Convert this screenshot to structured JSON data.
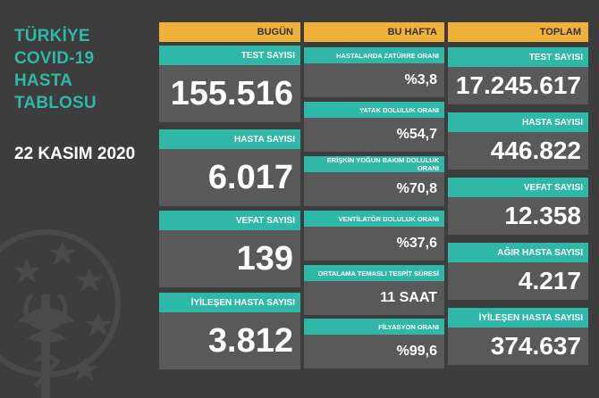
{
  "title": "TÜRKİYE\nCOVID-19\nHASTA\nTABLOSU",
  "date": "22 KASIM 2020",
  "headers": {
    "today": "BUGÜN",
    "week": "BU HAFTA",
    "total": "TOPLAM"
  },
  "today": [
    {
      "label": "TEST SAYISI",
      "value": "155.516"
    },
    {
      "label": "HASTA SAYISI",
      "value": "6.017"
    },
    {
      "label": "VEFAT SAYISI",
      "value": "139"
    },
    {
      "label": "İYİLEŞEN HASTA SAYISI",
      "value": "3.812"
    }
  ],
  "week": [
    {
      "label": "HASTALARDA ZATÜRRE ORANI",
      "value": "%3,8"
    },
    {
      "label": "YATAK DOLULUK ORANI",
      "value": "%54,7"
    },
    {
      "label": "ERİŞKİN YOĞUN BAKIM DOLULUK ORANI",
      "value": "%70,8"
    },
    {
      "label": "VENTİLATÖR DOLULUK ORANI",
      "value": "%37,6"
    },
    {
      "label": "ORTALAMA TEMASLI TESPİT SÜRESİ",
      "value": "11 SAAT"
    },
    {
      "label": "FİLYASYON ORANI",
      "value": "%99,6"
    }
  ],
  "total": [
    {
      "label": "TEST SAYISI",
      "value": "17.245.617"
    },
    {
      "label": "HASTA SAYISI",
      "value": "446.822"
    },
    {
      "label": "VEFAT SAYISI",
      "value": "12.358"
    },
    {
      "label": "AĞIR HASTA SAYISI",
      "value": "4.217"
    },
    {
      "label": "İYİLEŞEN HASTA SAYISI",
      "value": "374.637"
    }
  ],
  "colors": {
    "accent": "#2fb7a8",
    "header": "#f0b13a",
    "panel": "#595959",
    "background": "#3d3d3d"
  }
}
